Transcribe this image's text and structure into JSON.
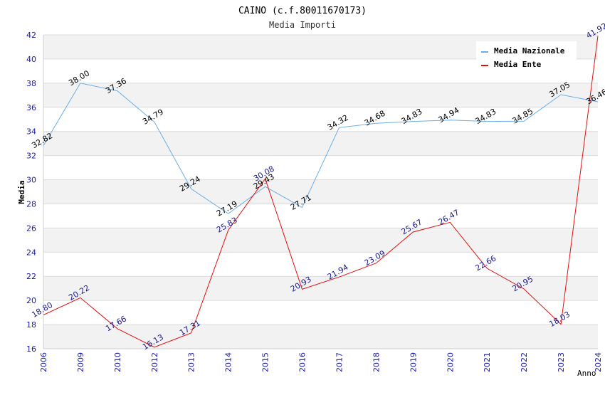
{
  "chart_data": {
    "type": "line",
    "title": "CAINO (c.f.80011670173)",
    "subtitle": "Media Importi",
    "xlabel": "Anno",
    "ylabel": "Media",
    "ylim": [
      16,
      42
    ],
    "yticks": [
      "16",
      "18",
      "20",
      "22",
      "24",
      "26",
      "28",
      "30",
      "32",
      "34",
      "36",
      "38",
      "40",
      "42"
    ],
    "categories": [
      "2006",
      "2009",
      "2010",
      "2012",
      "2013",
      "2014",
      "2015",
      "2016",
      "2017",
      "2018",
      "2019",
      "2020",
      "2021",
      "2022",
      "2023",
      "2024"
    ],
    "legend_position": "top-right",
    "grid": "horizontal alternating bands",
    "series": [
      {
        "name": "Media Nazionale",
        "color": "#6aaee6",
        "label_color": "#000000",
        "values": [
          32.82,
          38.0,
          37.36,
          34.79,
          29.24,
          27.19,
          29.43,
          27.71,
          34.32,
          34.68,
          34.83,
          34.94,
          34.83,
          34.85,
          37.05,
          36.46
        ],
        "labels": [
          "32.82",
          "38.00",
          "37.36",
          "34.79",
          "29.24",
          "27.19",
          "29.43",
          "27.71",
          "34.32",
          "34.68",
          "34.83",
          "34.94",
          "34.83",
          "34.85",
          "37.05",
          "36.46"
        ]
      },
      {
        "name": "Media Ente",
        "color": "#e01010",
        "label_color": "#1a1a8a",
        "values": [
          18.8,
          20.22,
          17.66,
          16.13,
          17.31,
          25.83,
          30.08,
          20.93,
          21.94,
          23.09,
          25.67,
          26.47,
          22.66,
          20.95,
          18.03,
          41.92
        ],
        "labels": [
          "18.80",
          "20.22",
          "17.66",
          "16.13",
          "17.31",
          "25.83",
          "30.08",
          "20.93",
          "21.94",
          "23.09",
          "25.67",
          "26.47",
          "22.66",
          "20.95",
          "18.03",
          "41.92"
        ]
      }
    ]
  }
}
